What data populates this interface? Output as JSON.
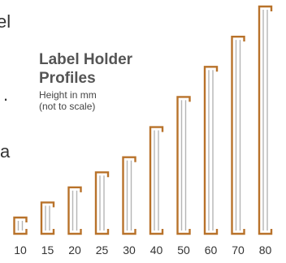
{
  "edge_text_fragments": [
    "el",
    ".",
    "a"
  ],
  "legend": {
    "title": "Label Holder\nProfiles",
    "subtitle": "Height in mm\n(not to scale)"
  },
  "colors": {
    "bracket": "#b8722a",
    "inner_line": "#b5b5b5",
    "text": "#333333"
  },
  "chart_data": {
    "type": "bar",
    "title": "Label Holder Profiles",
    "subtitle": "Height in mm (not to scale)",
    "categories": [
      "10",
      "15",
      "20",
      "25",
      "30",
      "40",
      "50",
      "60",
      "70",
      "80"
    ],
    "values": [
      10,
      15,
      20,
      25,
      30,
      40,
      50,
      60,
      70,
      80
    ],
    "unit": "mm",
    "xlabel": "",
    "ylabel": ""
  }
}
